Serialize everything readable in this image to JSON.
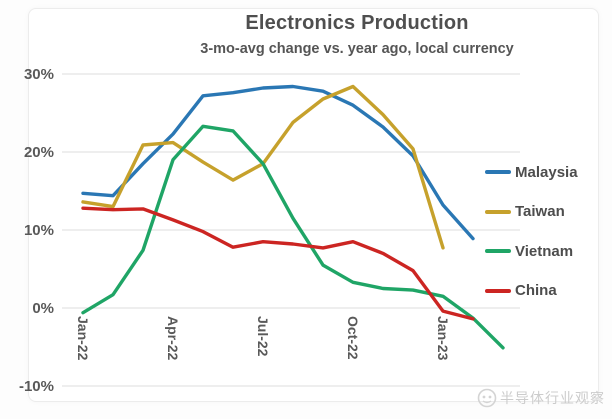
{
  "chart_data": {
    "type": "line",
    "title": "Electronics Production",
    "subtitle": "3-mo-avg change vs. year ago, local currency",
    "x": [
      "Jan-22",
      "Feb-22",
      "Mar-22",
      "Apr-22",
      "May-22",
      "Jun-22",
      "Jul-22",
      "Aug-22",
      "Sep-22",
      "Oct-22",
      "Nov-22",
      "Dec-22",
      "Jan-23",
      "Feb-23",
      "Mar-23"
    ],
    "x_ticks": [
      {
        "label": "Jan-22",
        "index": 0
      },
      {
        "label": "Apr-22",
        "index": 3
      },
      {
        "label": "Jul-22",
        "index": 6
      },
      {
        "label": "Oct-22",
        "index": 9
      },
      {
        "label": "Jan-23",
        "index": 12
      }
    ],
    "y_ticks": [
      {
        "label": "30%",
        "value": 30
      },
      {
        "label": "20%",
        "value": 20
      },
      {
        "label": "10%",
        "value": 10
      },
      {
        "label": "0%",
        "value": 0
      },
      {
        "label": "-10%",
        "value": -10
      }
    ],
    "ylim": [
      -10,
      30
    ],
    "unit": "%",
    "grid": true,
    "legend_position": "right",
    "series": [
      {
        "name": "Malaysia",
        "color": "#2A77B4",
        "values": [
          14.7,
          14.4,
          18.5,
          22.3,
          27.2,
          27.6,
          28.2,
          28.4,
          27.8,
          26.0,
          23.2,
          19.5,
          13.2,
          8.9,
          null
        ]
      },
      {
        "name": "Taiwan",
        "color": "#C6A12C",
        "values": [
          13.6,
          13.0,
          20.9,
          21.2,
          18.7,
          16.4,
          18.5,
          23.8,
          26.8,
          28.4,
          24.8,
          20.4,
          7.7,
          null,
          null
        ]
      },
      {
        "name": "Vietnam",
        "color": "#1FA566",
        "values": [
          -0.6,
          1.7,
          7.4,
          19.0,
          23.3,
          22.7,
          18.5,
          11.5,
          5.5,
          3.3,
          2.5,
          2.3,
          1.5,
          -1.3,
          -5.1
        ]
      },
      {
        "name": "China",
        "color": "#CC2522",
        "values": [
          12.8,
          12.6,
          12.7,
          11.3,
          9.8,
          7.8,
          8.5,
          8.2,
          7.7,
          8.5,
          7.0,
          4.8,
          -0.4,
          -1.4,
          null
        ]
      }
    ]
  },
  "watermark": {
    "text": "半导体行业观察"
  }
}
